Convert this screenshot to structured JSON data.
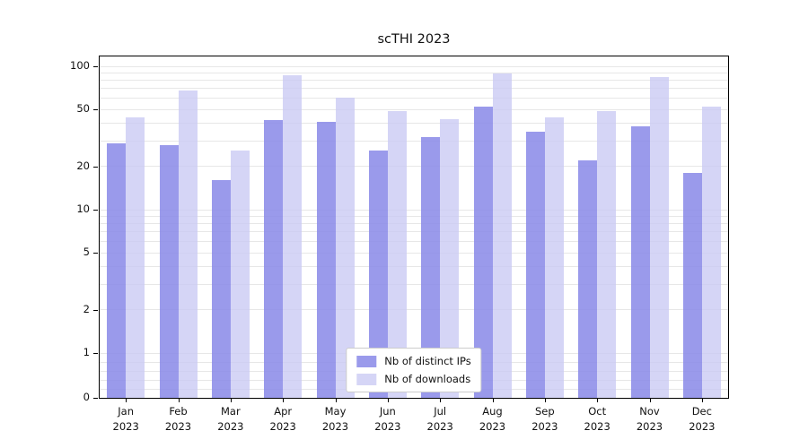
{
  "chart_data": {
    "type": "bar",
    "title": "scTHI 2023",
    "categories": [
      "Jan",
      "Feb",
      "Mar",
      "Apr",
      "May",
      "Jun",
      "Jul",
      "Aug",
      "Sep",
      "Oct",
      "Nov",
      "Dec"
    ],
    "x_year_label": "2023",
    "series": [
      {
        "name": "Nb of distinct IPs",
        "color": "#8888e8",
        "opacity": 0.85,
        "values": [
          29,
          28,
          16,
          42,
          41,
          26,
          32,
          52,
          35,
          22,
          38,
          18
        ]
      },
      {
        "name": "Nb of downloads",
        "color": "#cbcbf4",
        "opacity": 0.8,
        "values": [
          44,
          68,
          26,
          86,
          60,
          49,
          43,
          89,
          44,
          49,
          84,
          52
        ]
      }
    ],
    "yscale": "symlog",
    "yticks": [
      0,
      1,
      2,
      5,
      10,
      20,
      50,
      100
    ],
    "ylim": [
      0,
      107
    ],
    "grid": true,
    "legend_position": "lower center"
  }
}
